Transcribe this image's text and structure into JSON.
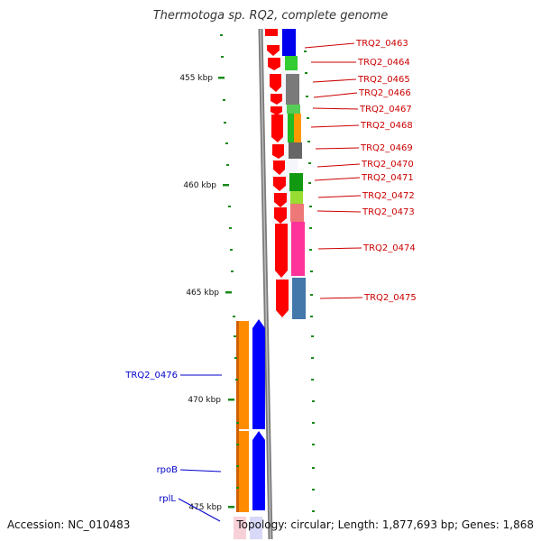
{
  "title": "Thermotoga sp. RQ2, complete genome",
  "accession": "Accession: NC_010483",
  "topology": "Topology: circular; Length: 1,877,693 bp; Genes: 1,868",
  "colors": {
    "label_red": "#cc0000",
    "label_blue": "#0000cc",
    "tick_green": "#1a8a1a",
    "backbone_gray": "#808080",
    "gene_red": "#ff0000",
    "gene_blue": "#0000ff",
    "gene_orange": "#ff8c00"
  },
  "kbp_ticks": [
    {
      "label": "455 kbp"
    },
    {
      "label": "460 kbp"
    },
    {
      "label": "465 kbp"
    },
    {
      "label": "470 kbp"
    },
    {
      "label": "475 kbp"
    }
  ],
  "gene_labels_red": [
    "TRQ2_0463",
    "TRQ2_0464",
    "TRQ2_0465",
    "TRQ2_0466",
    "TRQ2_0467",
    "TRQ2_0468",
    "TRQ2_0469",
    "TRQ2_0470",
    "TRQ2_0471",
    "TRQ2_0472",
    "TRQ2_0473",
    "TRQ2_0474",
    "TRQ2_0475"
  ],
  "gene_labels_blue": [
    "TRQ2_0476",
    "rpoB",
    "rplL"
  ]
}
